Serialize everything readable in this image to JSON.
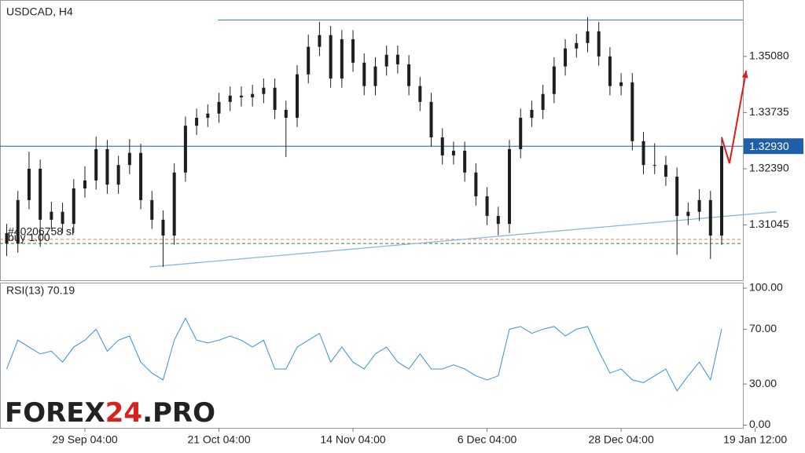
{
  "chart_data": [
    {
      "type": "candlestick",
      "title": "USDCAD, H4",
      "xlim": [
        -0.6,
        65.9
      ],
      "ylim": [
        1.2972,
        1.3643
      ],
      "yticks": [
        {
          "value": 1.3508,
          "label": "1.35080"
        },
        {
          "value": 1.33735,
          "label": "1.33735"
        },
        {
          "value": 1.3239,
          "label": "1.32390"
        },
        {
          "value": 1.31045,
          "label": "1.31045"
        }
      ],
      "color": "#1e1e1e",
      "open": [
        1.3085,
        1.306,
        1.3164,
        1.3239,
        1.3117,
        1.3136,
        1.3107,
        1.3192,
        1.3211,
        1.3286,
        1.3201,
        1.3248,
        1.3277,
        1.3164,
        1.3117,
        1.3079,
        1.323,
        1.3342,
        1.3361,
        1.3371,
        1.3399,
        1.3414,
        1.341,
        1.3418,
        1.3433,
        1.338,
        1.3361,
        1.3465,
        1.3531,
        1.3559,
        1.3455,
        1.3549,
        1.3493,
        1.3437,
        1.3484,
        1.3512,
        1.3489,
        1.3437,
        1.3399,
        1.3314,
        1.3271,
        1.3282,
        1.323,
        1.3173,
        1.3126,
        1.3107,
        1.3286,
        1.3361,
        1.338,
        1.3418,
        1.3484,
        1.3527,
        1.354,
        1.3568,
        1.3508,
        1.3437,
        1.3446,
        1.3305,
        1.3248,
        1.3248,
        1.322,
        1.3126,
        1.3136,
        1.3164,
        1.3079
      ],
      "high": [
        1.3107,
        1.3186,
        1.328,
        1.3261,
        1.316,
        1.3158,
        1.3214,
        1.3245,
        1.3316,
        1.3308,
        1.327,
        1.331,
        1.3299,
        1.3186,
        1.3139,
        1.3252,
        1.3364,
        1.3383,
        1.3393,
        1.3421,
        1.3436,
        1.3436,
        1.344,
        1.3455,
        1.3455,
        1.3402,
        1.3487,
        1.356,
        1.3591,
        1.3581,
        1.3571,
        1.3571,
        1.3515,
        1.3506,
        1.3534,
        1.3534,
        1.3511,
        1.3459,
        1.3421,
        1.3336,
        1.3304,
        1.3304,
        1.3252,
        1.3195,
        1.3148,
        1.3308,
        1.3383,
        1.3402,
        1.344,
        1.3506,
        1.3549,
        1.3562,
        1.3602,
        1.359,
        1.353,
        1.3468,
        1.3468,
        1.3327,
        1.33,
        1.327,
        1.3242,
        1.3158,
        1.319,
        1.3186,
        1.3315
      ],
      "low": [
        1.303,
        1.3038,
        1.3142,
        1.3052,
        1.3095,
        1.3085,
        1.3085,
        1.317,
        1.3189,
        1.3179,
        1.3179,
        1.3226,
        1.3142,
        1.3095,
        1.3004,
        1.3057,
        1.3208,
        1.332,
        1.3339,
        1.3349,
        1.3377,
        1.3388,
        1.3388,
        1.3396,
        1.3358,
        1.3267,
        1.3339,
        1.3443,
        1.3509,
        1.3433,
        1.3433,
        1.3471,
        1.3415,
        1.3415,
        1.3462,
        1.3467,
        1.3415,
        1.3377,
        1.3292,
        1.3249,
        1.3249,
        1.3208,
        1.3151,
        1.3104,
        1.308,
        1.3085,
        1.3264,
        1.3339,
        1.3358,
        1.3396,
        1.3462,
        1.3505,
        1.3518,
        1.3486,
        1.3415,
        1.3415,
        1.3283,
        1.3226,
        1.3226,
        1.3198,
        1.3033,
        1.3104,
        1.3114,
        1.3023,
        1.3057
      ],
      "close": [
        1.306,
        1.3164,
        1.3239,
        1.3117,
        1.3136,
        1.3107,
        1.3192,
        1.3211,
        1.3286,
        1.3201,
        1.3248,
        1.3277,
        1.3164,
        1.3117,
        1.3079,
        1.323,
        1.3342,
        1.3361,
        1.3371,
        1.3399,
        1.3414,
        1.341,
        1.3418,
        1.3433,
        1.338,
        1.3361,
        1.3465,
        1.3531,
        1.3559,
        1.3455,
        1.3549,
        1.3493,
        1.3437,
        1.3484,
        1.3512,
        1.3489,
        1.3437,
        1.3399,
        1.3314,
        1.3271,
        1.3282,
        1.323,
        1.3173,
        1.3126,
        1.3107,
        1.3286,
        1.3361,
        1.338,
        1.3418,
        1.3484,
        1.3527,
        1.354,
        1.3568,
        1.3508,
        1.3437,
        1.3446,
        1.3305,
        1.3248,
        1.3248,
        1.322,
        1.3126,
        1.3136,
        1.3164,
        1.3079,
        1.3293
      ],
      "last": {
        "value": 1.3293,
        "label": "1.32930"
      },
      "last_color": "#1f5fa8",
      "resistance": {
        "x": [
          18.9,
          65.9
        ],
        "y": [
          1.3595,
          1.3595
        ],
        "color": "#3b7cc4"
      },
      "trendline": {
        "x": [
          12.8,
          68.9
        ],
        "y": [
          1.3004,
          1.3136
        ],
        "color": "#8fb4dc"
      },
      "forecast": {
        "x": [
          64.0,
          64.7,
          66.2
        ],
        "y": [
          1.3314,
          1.3252,
          1.3474
        ],
        "color": "#e01b1b"
      },
      "orders": [
        {
          "label": "#40206758 sl",
          "price": 1.307,
          "color": "#e8824a"
        },
        {
          "label": "buy 1.00",
          "price": 1.306,
          "color": "#2e7d32"
        }
      ]
    },
    {
      "type": "line",
      "title": "RSI(13) 70.19",
      "color": "#3a8ee6",
      "xlim": [
        -0.6,
        65.9
      ],
      "ylim": [
        -2,
        104
      ],
      "yticks": [
        {
          "value": 100,
          "label": "100.00"
        },
        {
          "value": 70,
          "label": "70.00"
        },
        {
          "value": 30,
          "label": "30.00"
        },
        {
          "value": 0,
          "label": "0.00"
        }
      ],
      "xticks": [
        {
          "value": 7,
          "label": "29 Sep 04:00"
        },
        {
          "value": 19,
          "label": "21 Oct 04:00"
        },
        {
          "value": 31,
          "label": "14 Nov 04:00"
        },
        {
          "value": 43,
          "label": "6 Dec 04:00"
        },
        {
          "value": 55,
          "label": "28 Dec 04:00"
        },
        {
          "value": 67,
          "label": "19 Jan 12:00"
        }
      ],
      "values": [
        41,
        62,
        57,
        52,
        54,
        46,
        57,
        62,
        70,
        54,
        62,
        65,
        46,
        38,
        33,
        62,
        78,
        62,
        60,
        62,
        65,
        62,
        57,
        62,
        41,
        41,
        57,
        62,
        67,
        46,
        57,
        46,
        41,
        52,
        57,
        46,
        41,
        52,
        41,
        41,
        44,
        41,
        36,
        33,
        36,
        70,
        72,
        67,
        70,
        72,
        65,
        70,
        72,
        54,
        38,
        41,
        33,
        31,
        36,
        41,
        25,
        36,
        46,
        33,
        70.19
      ]
    }
  ],
  "logo_parts": [
    "FOREX",
    "24",
    ".PRO"
  ]
}
